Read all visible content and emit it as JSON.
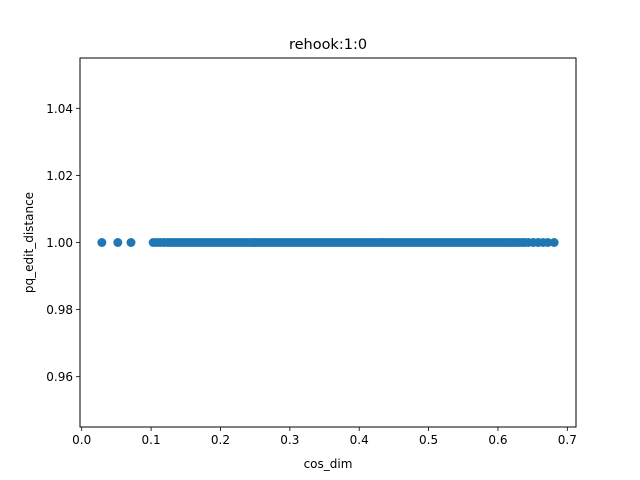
{
  "chart_data": {
    "type": "scatter",
    "title": "rehook:1:0",
    "xlabel": "cos_dim",
    "ylabel": "pq_edit_distance",
    "xlim": [
      -0.0025,
      0.7125
    ],
    "ylim": [
      0.945,
      1.055
    ],
    "xticks": [
      "0.0",
      "0.1",
      "0.2",
      "0.3",
      "0.4",
      "0.5",
      "0.6",
      "0.7"
    ],
    "yticks": [
      "0.96",
      "0.98",
      "1.00",
      "1.02",
      "1.04"
    ],
    "grid": false,
    "marker_color": "#1f77b4",
    "series": [
      {
        "x": [
          0.029,
          0.052,
          0.071,
          0.103,
          0.108,
          0.113,
          0.118,
          0.123,
          0.127,
          0.131,
          0.135,
          0.139,
          0.143,
          0.147,
          0.151,
          0.155,
          0.159,
          0.163,
          0.167,
          0.171,
          0.175,
          0.179,
          0.183,
          0.187,
          0.191,
          0.195,
          0.199,
          0.203,
          0.207,
          0.211,
          0.215,
          0.219,
          0.223,
          0.227,
          0.231,
          0.235,
          0.239,
          0.243,
          0.247,
          0.251,
          0.255,
          0.259,
          0.263,
          0.267,
          0.271,
          0.275,
          0.279,
          0.283,
          0.287,
          0.291,
          0.295,
          0.299,
          0.303,
          0.307,
          0.311,
          0.315,
          0.319,
          0.323,
          0.327,
          0.331,
          0.335,
          0.339,
          0.343,
          0.347,
          0.351,
          0.355,
          0.359,
          0.363,
          0.367,
          0.371,
          0.375,
          0.379,
          0.383,
          0.387,
          0.391,
          0.395,
          0.399,
          0.403,
          0.407,
          0.411,
          0.415,
          0.419,
          0.423,
          0.427,
          0.431,
          0.435,
          0.439,
          0.443,
          0.447,
          0.451,
          0.455,
          0.459,
          0.463,
          0.467,
          0.471,
          0.475,
          0.479,
          0.483,
          0.487,
          0.491,
          0.495,
          0.499,
          0.503,
          0.507,
          0.511,
          0.515,
          0.519,
          0.523,
          0.527,
          0.531,
          0.535,
          0.539,
          0.543,
          0.547,
          0.551,
          0.555,
          0.559,
          0.563,
          0.567,
          0.571,
          0.575,
          0.579,
          0.583,
          0.587,
          0.591,
          0.595,
          0.599,
          0.603,
          0.607,
          0.611,
          0.615,
          0.619,
          0.623,
          0.627,
          0.631,
          0.635,
          0.639,
          0.644,
          0.651,
          0.658,
          0.665,
          0.672,
          0.681
        ],
        "y": 1.0
      }
    ]
  }
}
